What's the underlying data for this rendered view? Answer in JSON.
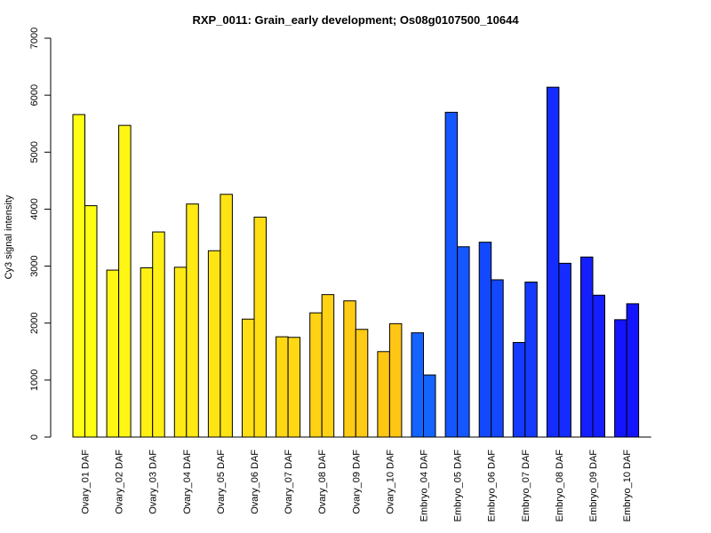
{
  "chart_data": {
    "type": "bar",
    "title": "RXP_0011: Grain_early development; Os08g0107500_10644",
    "xlabel": "",
    "ylabel": "Cy3 signal intensity",
    "ylim": [
      0,
      7000
    ],
    "yticks": [
      0,
      1000,
      2000,
      3000,
      4000,
      5000,
      6000,
      7000
    ],
    "grid": false,
    "legend": "none",
    "categories": [
      "Ovary_01 DAF",
      "Ovary_02 DAF",
      "Ovary_03 DAF",
      "Ovary_04 DAF",
      "Ovary_05 DAF",
      "Ovary_06 DAF",
      "Ovary_07 DAF",
      "Ovary_08 DAF",
      "Ovary_09 DAF",
      "Ovary_10 DAF",
      "Embryo_04 DAF",
      "Embryo_05 DAF",
      "Embryo_06 DAF",
      "Embryo_07 DAF",
      "Embryo_08 DAF",
      "Embryo_09 DAF",
      "Embryo_10 DAF"
    ],
    "series": [
      {
        "values": [
          5660,
          2930,
          2970,
          2980,
          3270,
          2070,
          1760,
          2180,
          2390,
          1500,
          1830,
          5700,
          3420,
          1660,
          6140,
          3160,
          2060
        ]
      },
      {
        "values": [
          4060,
          5470,
          3600,
          4090,
          4260,
          3860,
          1750,
          2500,
          1890,
          1990,
          1090,
          3340,
          2760,
          2720,
          3050,
          2490,
          2340
        ]
      }
    ],
    "colors": [
      "#FFFF14",
      "#FFF614",
      "#FFF014",
      "#FFEA14",
      "#FFE414",
      "#FFDE14",
      "#FFD814",
      "#FFD214",
      "#FFCB14",
      "#FFC614",
      "#1464FF",
      "#1456FF",
      "#1448FF",
      "#143AFF",
      "#142CFF",
      "#141EFF",
      "#1414FF"
    ]
  }
}
